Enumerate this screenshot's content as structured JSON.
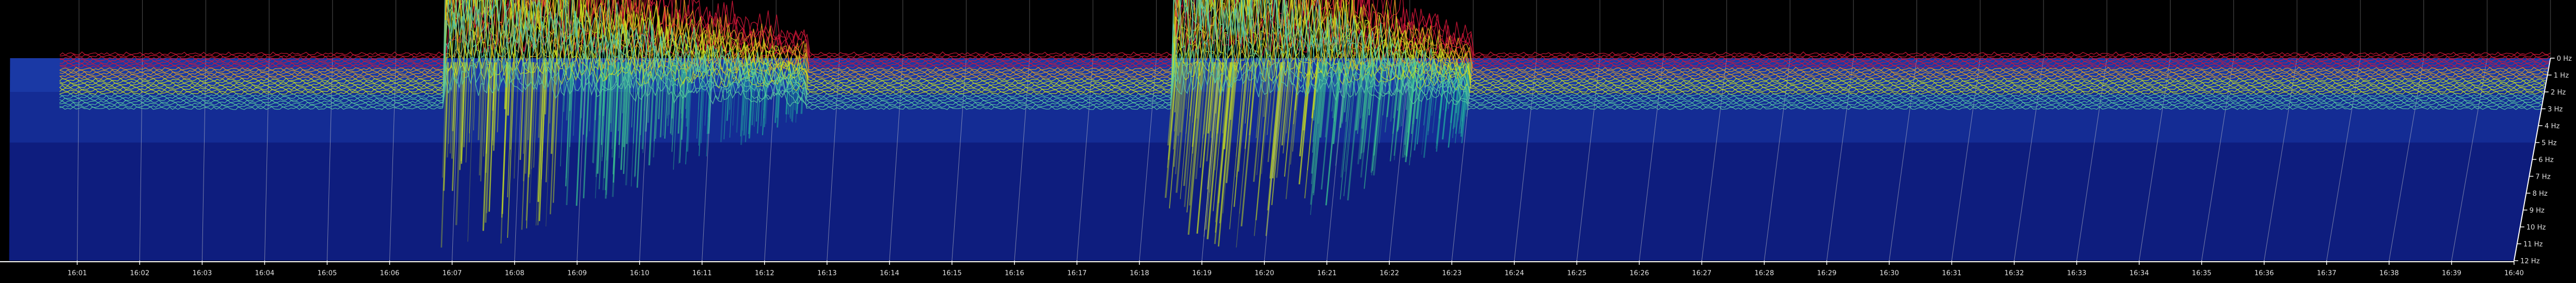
{
  "chart_data": {
    "type": "area",
    "view": "3d-waterfall-spectrogram",
    "x": {
      "ticks": [
        "16:01",
        "16:02",
        "16:03",
        "16:04",
        "16:05",
        "16:06",
        "16:07",
        "16:08",
        "16:09",
        "16:10",
        "16:11",
        "16:12",
        "16:13",
        "16:14",
        "16:15",
        "16:16",
        "16:17",
        "16:18",
        "16:19",
        "16:20",
        "16:21",
        "16:22",
        "16:23",
        "16:24",
        "16:25",
        "16:26",
        "16:27",
        "16:28",
        "16:29",
        "16:30",
        "16:31",
        "16:32",
        "16:33",
        "16:34",
        "16:35",
        "16:36",
        "16:37",
        "16:38",
        "16:39",
        "16:40"
      ]
    },
    "z": {
      "ticks": [
        "0 Hz",
        "1 Hz",
        "2 Hz",
        "3 Hz",
        "4 Hz",
        "5 Hz",
        "6 Hz",
        "7 Hz",
        "8 Hz",
        "9 Hz",
        "10 Hz",
        "11 Hz",
        "12 Hz"
      ],
      "range": [
        0,
        12
      ]
    },
    "events": [
      {
        "start": "16:06.8",
        "end": "16:12.5",
        "peak": "16:07.2"
      },
      {
        "start": "16:18.3",
        "end": "16:23.0",
        "peak": "16:19.4"
      }
    ],
    "palette": {
      "background": "#000000",
      "floor_low": "#0b1470",
      "floor_high": "#1f46b8",
      "mid": "#22b0a0",
      "high": "#c8e020",
      "peak": "#d21638",
      "grid": "#cfcfcf",
      "axis": "#ffffff"
    }
  }
}
